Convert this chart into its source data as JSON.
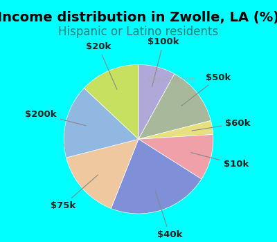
{
  "title": "Income distribution in Zwolle, LA (%)",
  "subtitle": "Hispanic or Latino residents",
  "watermark": "City-Data.com",
  "background_outer": "#00FFFF",
  "background_inner": "#e8f0e8",
  "slices": [
    {
      "label": "$100k",
      "value": 8,
      "color": "#b0a8d8"
    },
    {
      "label": "$50k",
      "value": 13,
      "color": "#a8b89a"
    },
    {
      "label": "$60k",
      "value": 3,
      "color": "#e8e080"
    },
    {
      "label": "$10k",
      "value": 10,
      "color": "#f0a0a8"
    },
    {
      "label": "$40k",
      "value": 22,
      "color": "#8090d8"
    },
    {
      "label": "$75k",
      "value": 15,
      "color": "#f0c8a0"
    },
    {
      "label": "$200k",
      "value": 16,
      "color": "#90b8e0"
    },
    {
      "label": "$20k",
      "value": 13,
      "color": "#c8e060"
    }
  ],
  "label_fontsize": 9.5,
  "title_fontsize": 14,
  "subtitle_fontsize": 12
}
